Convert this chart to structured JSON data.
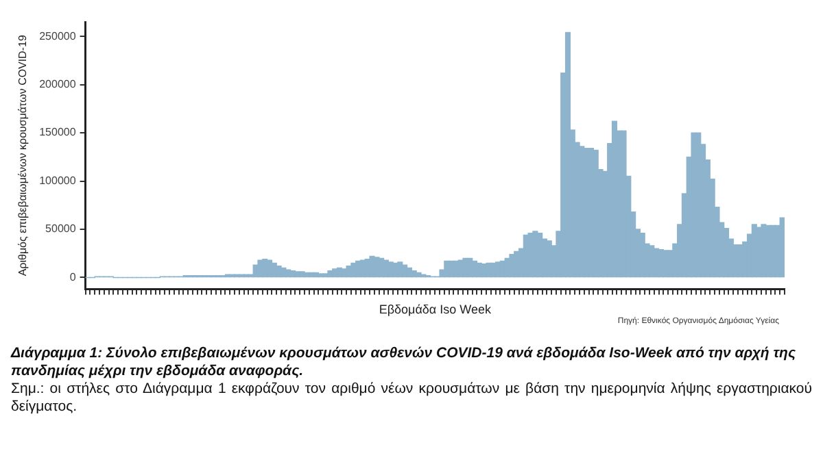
{
  "chart_data": {
    "type": "bar",
    "title": "Διάγραμμα 1: Σύνολο επιβεβαιωμένων κρουσμάτων ασθενών COVID-19 ανά εβδομάδα Iso-Week από την αρχή της πανδημίας μέχρι την εβδομάδα αναφοράς.",
    "xlabel": "Εβδομάδα Iso Week",
    "ylabel": "Αριθμός επιβεβαιωμένων κρουσμάτων COVID-19",
    "annotations": [
      "Πηγή: Εθνικός Οργανισμός Δημόσιας Υγείας",
      "Σημ.: οι στήλες στο Διάγραμμα 1 εκφράζουν τον αριθμό νέων κρουσμάτων με βάση την ημερομηνία λήψης εργαστηριακού δείγματος."
    ],
    "categories": [
      null,
      null,
      null,
      null,
      null,
      null,
      null,
      null,
      null,
      null,
      null,
      null,
      null,
      null,
      null,
      null,
      null,
      null,
      null,
      null,
      null,
      null,
      null,
      null,
      null,
      null,
      null,
      null,
      null,
      null,
      null,
      null,
      null,
      null,
      null,
      null,
      null,
      null,
      null,
      null,
      null,
      null,
      null,
      null,
      null,
      null,
      null,
      null,
      null,
      null,
      null,
      null,
      null,
      null,
      null,
      null,
      null,
      null,
      null,
      null,
      null,
      null,
      null,
      null,
      null,
      null,
      null,
      null,
      null,
      null,
      null,
      null,
      null,
      null,
      null,
      null,
      null,
      null,
      null,
      null,
      null,
      null,
      null,
      null,
      null,
      null,
      null,
      null,
      null,
      null,
      null,
      null,
      null,
      null,
      null,
      null,
      null,
      null,
      null,
      null,
      null,
      null,
      null,
      null,
      null,
      null,
      null,
      null,
      null,
      null,
      null,
      null,
      null,
      null,
      null,
      null,
      null,
      null,
      null,
      null,
      null,
      null,
      null,
      null,
      null,
      null,
      null,
      null,
      null,
      null,
      null,
      null,
      null,
      null,
      null,
      null,
      null,
      null,
      null,
      null,
      null,
      null,
      null,
      null,
      null,
      null,
      null,
      null,
      null,
      null
    ],
    "values": [
      0,
      0,
      1000,
      1000,
      1000,
      1000,
      0,
      0,
      0,
      0,
      0,
      0,
      0,
      0,
      0,
      0,
      1000,
      1000,
      1000,
      1000,
      1000,
      2000,
      2000,
      2000,
      2000,
      2000,
      2000,
      2000,
      2000,
      2000,
      3000,
      3000,
      3000,
      3000,
      3000,
      3000,
      13000,
      18000,
      19000,
      18000,
      15000,
      12000,
      10000,
      8000,
      7000,
      6000,
      6000,
      5000,
      5000,
      5000,
      4000,
      4000,
      7000,
      9000,
      10000,
      9000,
      12000,
      15000,
      17000,
      18000,
      19000,
      22000,
      21000,
      20000,
      18000,
      16000,
      15000,
      16000,
      13000,
      10000,
      7000,
      5000,
      3000,
      2000,
      1000,
      1000,
      8000,
      17000,
      17000,
      17000,
      18000,
      20000,
      20000,
      17000,
      15000,
      14000,
      15000,
      15000,
      16000,
      17000,
      20000,
      24000,
      27000,
      30000,
      44000,
      46000,
      48000,
      46000,
      40000,
      38000,
      33000,
      48000,
      212000,
      254000,
      153000,
      140000,
      136000,
      134000,
      134000,
      132000,
      112000,
      110000,
      139000,
      162000,
      152000,
      152000,
      105000,
      68000,
      50000,
      46000,
      35000,
      33000,
      30000,
      29000,
      28000,
      28000,
      35000,
      55000,
      87000,
      125000,
      150000,
      150000,
      138000,
      122000,
      102000,
      73000,
      57000,
      51000,
      40000,
      34000,
      34000,
      37000,
      45000,
      55000,
      52000,
      55000,
      54000,
      54000,
      54000,
      62000
    ],
    "color": "#8db3cd",
    "ylim": [
      -12000,
      265000
    ],
    "yticks": [
      0,
      50000,
      100000,
      150000,
      200000,
      250000
    ],
    "grid": false,
    "legend": false
  }
}
